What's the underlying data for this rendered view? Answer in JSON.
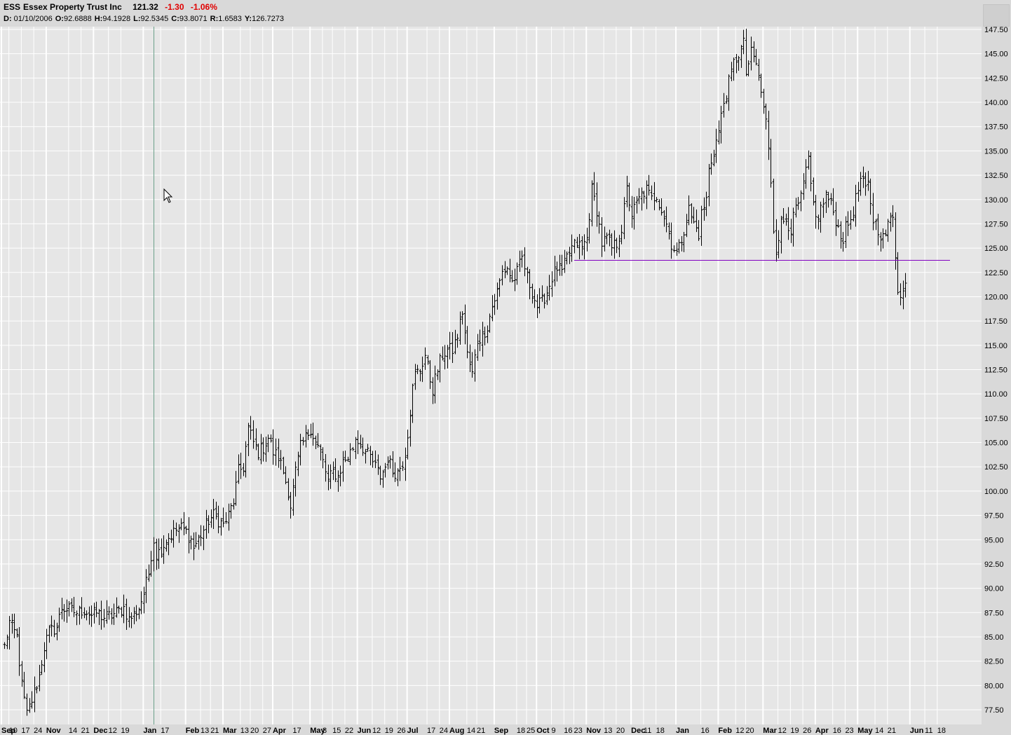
{
  "header": {
    "symbol": "ESS",
    "name": "Essex Property Trust Inc",
    "last": "121.32",
    "change": "-1.30",
    "change_pct": "-1.06%",
    "ohlc": {
      "period_label": "D:",
      "date": "01/10/2006",
      "o_label": "O:",
      "o": "92.6888",
      "h_label": "H:",
      "h": "94.1928",
      "l_label": "L:",
      "l": "92.5345",
      "c_label": "C:",
      "c": "93.8071",
      "r_label": "R:",
      "r": "1.6583",
      "y_label": "Y:",
      "y": "126.7273"
    }
  },
  "colors": {
    "background": "#e6e6e6",
    "grid": "#ffffff",
    "bars": "#000000",
    "negative": "#e00000",
    "support_line": "#8000c0",
    "crosshair": "#6aa08a"
  },
  "chart_data": {
    "type": "ohlc",
    "title": "ESS Essex Property Trust Inc",
    "xlabel": "",
    "ylabel": "",
    "ylim": [
      76.5,
      148
    ],
    "y_ticks": [
      "77.50",
      "80.00",
      "82.50",
      "85.00",
      "87.50",
      "90.00",
      "92.50",
      "95.00",
      "97.50",
      "100.00",
      "102.50",
      "105.00",
      "107.50",
      "110.00",
      "112.50",
      "115.00",
      "117.50",
      "120.00",
      "122.50",
      "125.00",
      "127.50",
      "130.00",
      "132.50",
      "135.00",
      "137.50",
      "140.00",
      "142.50",
      "145.00",
      "147.50"
    ],
    "x_ticks": [
      {
        "label": "Sep",
        "bold": true,
        "bar": 0
      },
      {
        "label": "10",
        "bold": false,
        "bar": 3
      },
      {
        "label": "17",
        "bold": false,
        "bar": 8
      },
      {
        "label": "24",
        "bold": false,
        "bar": 13
      },
      {
        "label": "Nov",
        "bold": true,
        "bar": 18
      },
      {
        "label": "14",
        "bold": false,
        "bar": 27
      },
      {
        "label": "21",
        "bold": false,
        "bar": 32
      },
      {
        "label": "Dec",
        "bold": true,
        "bar": 37
      },
      {
        "label": "12",
        "bold": false,
        "bar": 43
      },
      {
        "label": "19",
        "bold": false,
        "bar": 48
      },
      {
        "label": "Jan",
        "bold": true,
        "bar": 57
      },
      {
        "label": "17",
        "bold": false,
        "bar": 64
      },
      {
        "label": "Feb",
        "bold": true,
        "bar": 74
      },
      {
        "label": "13",
        "bold": false,
        "bar": 80
      },
      {
        "label": "21",
        "bold": false,
        "bar": 84
      },
      {
        "label": "Mar",
        "bold": true,
        "bar": 89
      },
      {
        "label": "13",
        "bold": false,
        "bar": 96
      },
      {
        "label": "20",
        "bold": false,
        "bar": 100
      },
      {
        "label": "27",
        "bold": false,
        "bar": 105
      },
      {
        "label": "Apr",
        "bold": true,
        "bar": 109
      },
      {
        "label": "17",
        "bold": false,
        "bar": 117
      },
      {
        "label": "May",
        "bold": true,
        "bar": 124
      },
      {
        "label": "8",
        "bold": false,
        "bar": 129
      },
      {
        "label": "15",
        "bold": false,
        "bar": 133
      },
      {
        "label": "22",
        "bold": false,
        "bar": 138
      },
      {
        "label": "Jun",
        "bold": true,
        "bar": 143
      },
      {
        "label": "12",
        "bold": false,
        "bar": 149
      },
      {
        "label": "19",
        "bold": false,
        "bar": 154
      },
      {
        "label": "26",
        "bold": false,
        "bar": 159
      },
      {
        "label": "Jul",
        "bold": true,
        "bar": 163
      },
      {
        "label": "17",
        "bold": false,
        "bar": 171
      },
      {
        "label": "24",
        "bold": false,
        "bar": 176
      },
      {
        "label": "Aug",
        "bold": true,
        "bar": 180
      },
      {
        "label": "14",
        "bold": false,
        "bar": 187
      },
      {
        "label": "21",
        "bold": false,
        "bar": 191
      },
      {
        "label": "Sep",
        "bold": true,
        "bar": 198
      },
      {
        "label": "18",
        "bold": false,
        "bar": 207
      },
      {
        "label": "25",
        "bold": false,
        "bar": 211
      },
      {
        "label": "Oct",
        "bold": true,
        "bar": 215
      },
      {
        "label": "9",
        "bold": false,
        "bar": 221
      },
      {
        "label": "16",
        "bold": false,
        "bar": 226
      },
      {
        "label": "23",
        "bold": false,
        "bar": 230
      },
      {
        "label": "Nov",
        "bold": true,
        "bar": 235
      },
      {
        "label": "13",
        "bold": false,
        "bar": 242
      },
      {
        "label": "20",
        "bold": false,
        "bar": 247
      },
      {
        "label": "Dec",
        "bold": true,
        "bar": 253
      },
      {
        "label": "11",
        "bold": false,
        "bar": 258
      },
      {
        "label": "18",
        "bold": false,
        "bar": 263
      },
      {
        "label": "Jan",
        "bold": true,
        "bar": 271
      },
      {
        "label": "16",
        "bold": false,
        "bar": 281
      },
      {
        "label": "Feb",
        "bold": true,
        "bar": 288
      },
      {
        "label": "12",
        "bold": false,
        "bar": 295
      },
      {
        "label": "20",
        "bold": false,
        "bar": 299
      },
      {
        "label": "Mar",
        "bold": true,
        "bar": 306
      },
      {
        "label": "12",
        "bold": false,
        "bar": 312
      },
      {
        "label": "19",
        "bold": false,
        "bar": 317
      },
      {
        "label": "26",
        "bold": false,
        "bar": 322
      },
      {
        "label": "Apr",
        "bold": true,
        "bar": 327
      },
      {
        "label": "16",
        "bold": false,
        "bar": 334
      },
      {
        "label": "23",
        "bold": false,
        "bar": 339
      },
      {
        "label": "May",
        "bold": true,
        "bar": 344
      },
      {
        "label": "14",
        "bold": false,
        "bar": 351
      },
      {
        "label": "21",
        "bold": false,
        "bar": 356
      },
      {
        "label": "Jun",
        "bold": true,
        "bar": 365
      },
      {
        "label": "11",
        "bold": false,
        "bar": 371
      },
      {
        "label": "18",
        "bold": false,
        "bar": 376
      }
    ],
    "grid": true,
    "anchors": [
      [
        0,
        84
      ],
      [
        2,
        86.5
      ],
      [
        5,
        85
      ],
      [
        7,
        80
      ],
      [
        9,
        77
      ],
      [
        11,
        78.5
      ],
      [
        14,
        81
      ],
      [
        16,
        84
      ],
      [
        18,
        85.5
      ],
      [
        21,
        86
      ],
      [
        23,
        88
      ],
      [
        26,
        87.8
      ],
      [
        29,
        87.5
      ],
      [
        32,
        87.8
      ],
      [
        35,
        87.2
      ],
      [
        37,
        87.5
      ],
      [
        40,
        87
      ],
      [
        43,
        87.2
      ],
      [
        45,
        87.5
      ],
      [
        48,
        88
      ],
      [
        50,
        86.8
      ],
      [
        52,
        87.3
      ],
      [
        54,
        88
      ],
      [
        56,
        89.5
      ],
      [
        58,
        91.5
      ],
      [
        59,
        93.5
      ],
      [
        60,
        95
      ],
      [
        61,
        93.5
      ],
      [
        63,
        94
      ],
      [
        65,
        95
      ],
      [
        67,
        95.5
      ],
      [
        69,
        96
      ],
      [
        71,
        96.2
      ],
      [
        73,
        95.8
      ],
      [
        75,
        95
      ],
      [
        76,
        94.2
      ],
      [
        78,
        95
      ],
      [
        80,
        96
      ],
      [
        82,
        97
      ],
      [
        84,
        97.5
      ],
      [
        86,
        97
      ],
      [
        88,
        96.5
      ],
      [
        90,
        97.5
      ],
      [
        92,
        99
      ],
      [
        94,
        102
      ],
      [
        96,
        102.5
      ],
      [
        98,
        106.5
      ],
      [
        100,
        105
      ],
      [
        102,
        104
      ],
      [
        104,
        104.5
      ],
      [
        106,
        105.5
      ],
      [
        108,
        104
      ],
      [
        110,
        103.5
      ],
      [
        112,
        102
      ],
      [
        114,
        100
      ],
      [
        115,
        98.5
      ],
      [
        117,
        102
      ],
      [
        119,
        104.5
      ],
      [
        121,
        105.5
      ],
      [
        123,
        106.5
      ],
      [
        125,
        105
      ],
      [
        127,
        104
      ],
      [
        129,
        102
      ],
      [
        130,
        101
      ],
      [
        132,
        102
      ],
      [
        134,
        101.5
      ],
      [
        136,
        103
      ],
      [
        138,
        103.5
      ],
      [
        140,
        104.5
      ],
      [
        141,
        105.5
      ],
      [
        143,
        105
      ],
      [
        145,
        104
      ],
      [
        147,
        103.5
      ],
      [
        149,
        102.5
      ],
      [
        151,
        101.5
      ],
      [
        153,
        102.5
      ],
      [
        154,
        103.5
      ],
      [
        156,
        102
      ],
      [
        158,
        102
      ],
      [
        160,
        103
      ],
      [
        161,
        104
      ],
      [
        162,
        106
      ],
      [
        164,
        110.5
      ],
      [
        165,
        112
      ],
      [
        167,
        112.5
      ],
      [
        169,
        114
      ],
      [
        171,
        111.5
      ],
      [
        172,
        110.5
      ],
      [
        174,
        112.5
      ],
      [
        176,
        114
      ],
      [
        178,
        114.5
      ],
      [
        180,
        114.5
      ],
      [
        182,
        116
      ],
      [
        184,
        118.5
      ],
      [
        186,
        114
      ],
      [
        188,
        112
      ],
      [
        190,
        115.5
      ],
      [
        192,
        116
      ],
      [
        194,
        117
      ],
      [
        196,
        119
      ],
      [
        198,
        120.5
      ],
      [
        200,
        122.5
      ],
      [
        202,
        123
      ],
      [
        204,
        121.5
      ],
      [
        206,
        122.5
      ],
      [
        208,
        124
      ],
      [
        210,
        122
      ],
      [
        212,
        120.5
      ],
      [
        214,
        119
      ],
      [
        216,
        119.5
      ],
      [
        218,
        120.5
      ],
      [
        220,
        122
      ],
      [
        222,
        123
      ],
      [
        224,
        122.5
      ],
      [
        226,
        124
      ],
      [
        228,
        125
      ],
      [
        230,
        125.5
      ],
      [
        232,
        125
      ],
      [
        234,
        126
      ],
      [
        235,
        128.5
      ],
      [
        236,
        131
      ],
      [
        238,
        129
      ],
      [
        240,
        125.5
      ],
      [
        242,
        126
      ],
      [
        244,
        125
      ],
      [
        246,
        125.5
      ],
      [
        248,
        127
      ],
      [
        249,
        129
      ],
      [
        250,
        131
      ],
      [
        252,
        128.5
      ],
      [
        254,
        129.5
      ],
      [
        256,
        130.5
      ],
      [
        258,
        131
      ],
      [
        260,
        130
      ],
      [
        262,
        130.5
      ],
      [
        264,
        129
      ],
      [
        266,
        127.5
      ],
      [
        268,
        125.5
      ],
      [
        270,
        124.5
      ],
      [
        271,
        125
      ],
      [
        273,
        127
      ],
      [
        275,
        129
      ],
      [
        277,
        127.5
      ],
      [
        279,
        126.5
      ],
      [
        280,
        128.5
      ],
      [
        282,
        130
      ],
      [
        283,
        133
      ],
      [
        285,
        135
      ],
      [
        287,
        137
      ],
      [
        289,
        140
      ],
      [
        291,
        142
      ],
      [
        293,
        144
      ],
      [
        295,
        145
      ],
      [
        297,
        146
      ],
      [
        298,
        143
      ],
      [
        300,
        145
      ],
      [
        302,
        144
      ],
      [
        304,
        141
      ],
      [
        306,
        138
      ],
      [
        307,
        135
      ],
      [
        308,
        132
      ],
      [
        309,
        127
      ],
      [
        310,
        125
      ],
      [
        312,
        127.5
      ],
      [
        314,
        128
      ],
      [
        316,
        127
      ],
      [
        318,
        129
      ],
      [
        320,
        130
      ],
      [
        322,
        133
      ],
      [
        323,
        134
      ],
      [
        324,
        131
      ],
      [
        326,
        128
      ],
      [
        328,
        129
      ],
      [
        330,
        130.5
      ],
      [
        332,
        129.5
      ],
      [
        334,
        128
      ],
      [
        335,
        127
      ],
      [
        337,
        126
      ],
      [
        338,
        127
      ],
      [
        340,
        128
      ],
      [
        342,
        130
      ],
      [
        344,
        132
      ],
      [
        346,
        131
      ],
      [
        347,
        131.5
      ],
      [
        349,
        128
      ],
      [
        351,
        127
      ],
      [
        353,
        126
      ],
      [
        354,
        126.5
      ],
      [
        356,
        128
      ],
      [
        357,
        128.5
      ],
      [
        358,
        124.5
      ],
      [
        359,
        121
      ],
      [
        360,
        119.8
      ],
      [
        361,
        120.5
      ],
      [
        362,
        121.4
      ]
    ],
    "support_line": {
      "y": 123.8,
      "from_bar": 229,
      "to_bar": 380
    },
    "crosshair_bar": 60
  }
}
